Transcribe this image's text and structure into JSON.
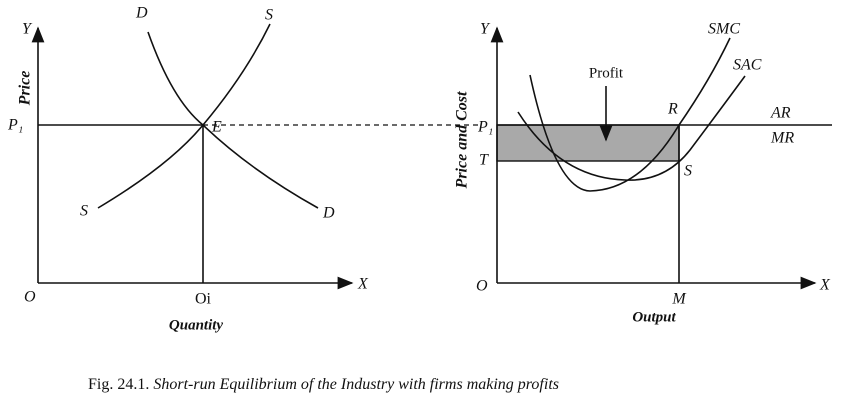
{
  "left_panel": {
    "y_axis": "Y",
    "y_label": "Price",
    "price_level": "P₁",
    "demand_top": "D",
    "supply_top": "S",
    "equilibrium": "E",
    "supply_bottom": "S",
    "demand_bottom": "D",
    "origin": "O",
    "quantity_point": "Oi",
    "x_axis": "X",
    "x_label": "Quantity"
  },
  "right_panel": {
    "y_axis": "Y",
    "y_label": "Price and Cost",
    "price_level": "P₁",
    "cost_level": "T",
    "profit_label": "Profit",
    "point_r": "R",
    "smc": "SMC",
    "sac": "SAC",
    "ar": "AR",
    "mr": "MR",
    "point_s": "S",
    "origin": "O",
    "output_point": "M",
    "x_axis": "X",
    "x_label": "Output"
  },
  "caption": {
    "number": "Fig. 24.1.",
    "text": "Short-run Equilibrium of the Industry with firms making profits"
  }
}
